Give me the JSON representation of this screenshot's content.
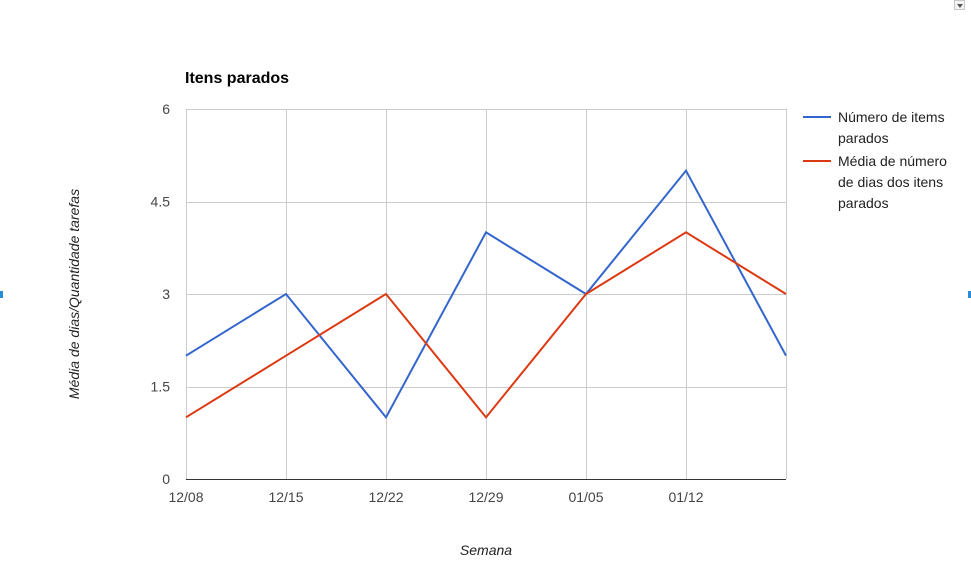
{
  "chart_data": {
    "type": "line",
    "title": "Itens parados",
    "xlabel": "Semana",
    "ylabel": "Média de dias/Quantidade tarefas",
    "categories": [
      "12/08",
      "12/15",
      "12/22",
      "12/29",
      "01/05",
      "01/12",
      ""
    ],
    "ylim": [
      0,
      6
    ],
    "yticks": [
      "0",
      "1.5",
      "3",
      "4.5",
      "6"
    ],
    "yticks_values": [
      0,
      1.5,
      3,
      4.5,
      6
    ],
    "grid": true,
    "legend_position": "right",
    "series": [
      {
        "name": "Número de items parados",
        "legend_lines": [
          "Número de items",
          "parados"
        ],
        "color": "#3366cc",
        "values": [
          2,
          3,
          1,
          4,
          3,
          5,
          2
        ]
      },
      {
        "name": "Média de número de dias dos itens parados",
        "legend_lines": [
          "Média de número",
          "de dias dos itens",
          "parados"
        ],
        "color": "#dc3912",
        "values": [
          1,
          2,
          3,
          1,
          3,
          4,
          3
        ]
      }
    ]
  }
}
